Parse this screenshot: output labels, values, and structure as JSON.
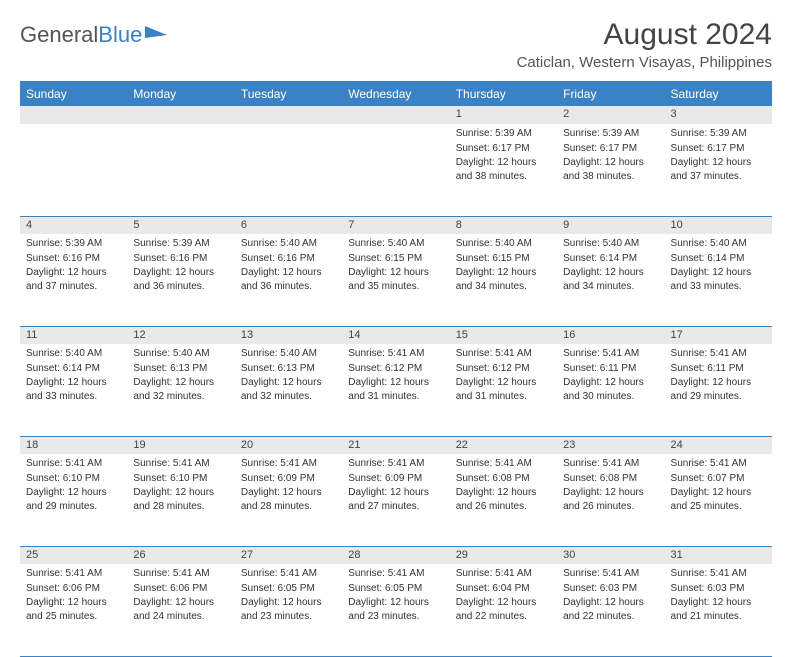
{
  "brand": {
    "part1": "General",
    "part2": "Blue"
  },
  "title": "August 2024",
  "location": "Caticlan, Western Visayas, Philippines",
  "headerColor": "#3b82c4",
  "rowStripeColor": "#e9e9e9",
  "textColor": "#333333",
  "weekdays": [
    "Sunday",
    "Monday",
    "Tuesday",
    "Wednesday",
    "Thursday",
    "Friday",
    "Saturday"
  ],
  "weeks": [
    [
      null,
      null,
      null,
      null,
      {
        "day": "1",
        "sunrise": "Sunrise: 5:39 AM",
        "sunset": "Sunset: 6:17 PM",
        "daylight": "Daylight: 12 hours and 38 minutes."
      },
      {
        "day": "2",
        "sunrise": "Sunrise: 5:39 AM",
        "sunset": "Sunset: 6:17 PM",
        "daylight": "Daylight: 12 hours and 38 minutes."
      },
      {
        "day": "3",
        "sunrise": "Sunrise: 5:39 AM",
        "sunset": "Sunset: 6:17 PM",
        "daylight": "Daylight: 12 hours and 37 minutes."
      }
    ],
    [
      {
        "day": "4",
        "sunrise": "Sunrise: 5:39 AM",
        "sunset": "Sunset: 6:16 PM",
        "daylight": "Daylight: 12 hours and 37 minutes."
      },
      {
        "day": "5",
        "sunrise": "Sunrise: 5:39 AM",
        "sunset": "Sunset: 6:16 PM",
        "daylight": "Daylight: 12 hours and 36 minutes."
      },
      {
        "day": "6",
        "sunrise": "Sunrise: 5:40 AM",
        "sunset": "Sunset: 6:16 PM",
        "daylight": "Daylight: 12 hours and 36 minutes."
      },
      {
        "day": "7",
        "sunrise": "Sunrise: 5:40 AM",
        "sunset": "Sunset: 6:15 PM",
        "daylight": "Daylight: 12 hours and 35 minutes."
      },
      {
        "day": "8",
        "sunrise": "Sunrise: 5:40 AM",
        "sunset": "Sunset: 6:15 PM",
        "daylight": "Daylight: 12 hours and 34 minutes."
      },
      {
        "day": "9",
        "sunrise": "Sunrise: 5:40 AM",
        "sunset": "Sunset: 6:14 PM",
        "daylight": "Daylight: 12 hours and 34 minutes."
      },
      {
        "day": "10",
        "sunrise": "Sunrise: 5:40 AM",
        "sunset": "Sunset: 6:14 PM",
        "daylight": "Daylight: 12 hours and 33 minutes."
      }
    ],
    [
      {
        "day": "11",
        "sunrise": "Sunrise: 5:40 AM",
        "sunset": "Sunset: 6:14 PM",
        "daylight": "Daylight: 12 hours and 33 minutes."
      },
      {
        "day": "12",
        "sunrise": "Sunrise: 5:40 AM",
        "sunset": "Sunset: 6:13 PM",
        "daylight": "Daylight: 12 hours and 32 minutes."
      },
      {
        "day": "13",
        "sunrise": "Sunrise: 5:40 AM",
        "sunset": "Sunset: 6:13 PM",
        "daylight": "Daylight: 12 hours and 32 minutes."
      },
      {
        "day": "14",
        "sunrise": "Sunrise: 5:41 AM",
        "sunset": "Sunset: 6:12 PM",
        "daylight": "Daylight: 12 hours and 31 minutes."
      },
      {
        "day": "15",
        "sunrise": "Sunrise: 5:41 AM",
        "sunset": "Sunset: 6:12 PM",
        "daylight": "Daylight: 12 hours and 31 minutes."
      },
      {
        "day": "16",
        "sunrise": "Sunrise: 5:41 AM",
        "sunset": "Sunset: 6:11 PM",
        "daylight": "Daylight: 12 hours and 30 minutes."
      },
      {
        "day": "17",
        "sunrise": "Sunrise: 5:41 AM",
        "sunset": "Sunset: 6:11 PM",
        "daylight": "Daylight: 12 hours and 29 minutes."
      }
    ],
    [
      {
        "day": "18",
        "sunrise": "Sunrise: 5:41 AM",
        "sunset": "Sunset: 6:10 PM",
        "daylight": "Daylight: 12 hours and 29 minutes."
      },
      {
        "day": "19",
        "sunrise": "Sunrise: 5:41 AM",
        "sunset": "Sunset: 6:10 PM",
        "daylight": "Daylight: 12 hours and 28 minutes."
      },
      {
        "day": "20",
        "sunrise": "Sunrise: 5:41 AM",
        "sunset": "Sunset: 6:09 PM",
        "daylight": "Daylight: 12 hours and 28 minutes."
      },
      {
        "day": "21",
        "sunrise": "Sunrise: 5:41 AM",
        "sunset": "Sunset: 6:09 PM",
        "daylight": "Daylight: 12 hours and 27 minutes."
      },
      {
        "day": "22",
        "sunrise": "Sunrise: 5:41 AM",
        "sunset": "Sunset: 6:08 PM",
        "daylight": "Daylight: 12 hours and 26 minutes."
      },
      {
        "day": "23",
        "sunrise": "Sunrise: 5:41 AM",
        "sunset": "Sunset: 6:08 PM",
        "daylight": "Daylight: 12 hours and 26 minutes."
      },
      {
        "day": "24",
        "sunrise": "Sunrise: 5:41 AM",
        "sunset": "Sunset: 6:07 PM",
        "daylight": "Daylight: 12 hours and 25 minutes."
      }
    ],
    [
      {
        "day": "25",
        "sunrise": "Sunrise: 5:41 AM",
        "sunset": "Sunset: 6:06 PM",
        "daylight": "Daylight: 12 hours and 25 minutes."
      },
      {
        "day": "26",
        "sunrise": "Sunrise: 5:41 AM",
        "sunset": "Sunset: 6:06 PM",
        "daylight": "Daylight: 12 hours and 24 minutes."
      },
      {
        "day": "27",
        "sunrise": "Sunrise: 5:41 AM",
        "sunset": "Sunset: 6:05 PM",
        "daylight": "Daylight: 12 hours and 23 minutes."
      },
      {
        "day": "28",
        "sunrise": "Sunrise: 5:41 AM",
        "sunset": "Sunset: 6:05 PM",
        "daylight": "Daylight: 12 hours and 23 minutes."
      },
      {
        "day": "29",
        "sunrise": "Sunrise: 5:41 AM",
        "sunset": "Sunset: 6:04 PM",
        "daylight": "Daylight: 12 hours and 22 minutes."
      },
      {
        "day": "30",
        "sunrise": "Sunrise: 5:41 AM",
        "sunset": "Sunset: 6:03 PM",
        "daylight": "Daylight: 12 hours and 22 minutes."
      },
      {
        "day": "31",
        "sunrise": "Sunrise: 5:41 AM",
        "sunset": "Sunset: 6:03 PM",
        "daylight": "Daylight: 12 hours and 21 minutes."
      }
    ]
  ]
}
